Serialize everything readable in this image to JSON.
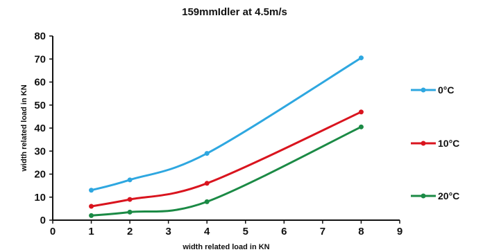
{
  "chart_data": {
    "type": "line",
    "title": "159mmIdler at 4.5m/s",
    "xlabel": "width related load in KN",
    "ylabel": "width related load in KN",
    "xlim": [
      0,
      9
    ],
    "ylim": [
      0,
      80
    ],
    "x_ticks": [
      "0",
      "1",
      "2",
      "3",
      "4",
      "5",
      "6",
      "7",
      "8",
      "9"
    ],
    "y_ticks": [
      "0",
      "10",
      "20",
      "30",
      "40",
      "50",
      "60",
      "70",
      "80"
    ],
    "grid": false,
    "legend_position": "right",
    "series": [
      {
        "name": "0°C",
        "color": "#2ea7e0",
        "points": [
          [
            1,
            13
          ],
          [
            2,
            17.5
          ],
          [
            4,
            29
          ],
          [
            8,
            70.5
          ]
        ]
      },
      {
        "name": "10°C",
        "color": "#d9141e",
        "points": [
          [
            1,
            6
          ],
          [
            2,
            9
          ],
          [
            4,
            16
          ],
          [
            8,
            47
          ]
        ]
      },
      {
        "name": "20°C",
        "color": "#1b8a45",
        "points": [
          [
            1,
            2
          ],
          [
            2,
            3.5
          ],
          [
            4,
            8
          ],
          [
            8,
            40.5
          ]
        ]
      }
    ]
  }
}
